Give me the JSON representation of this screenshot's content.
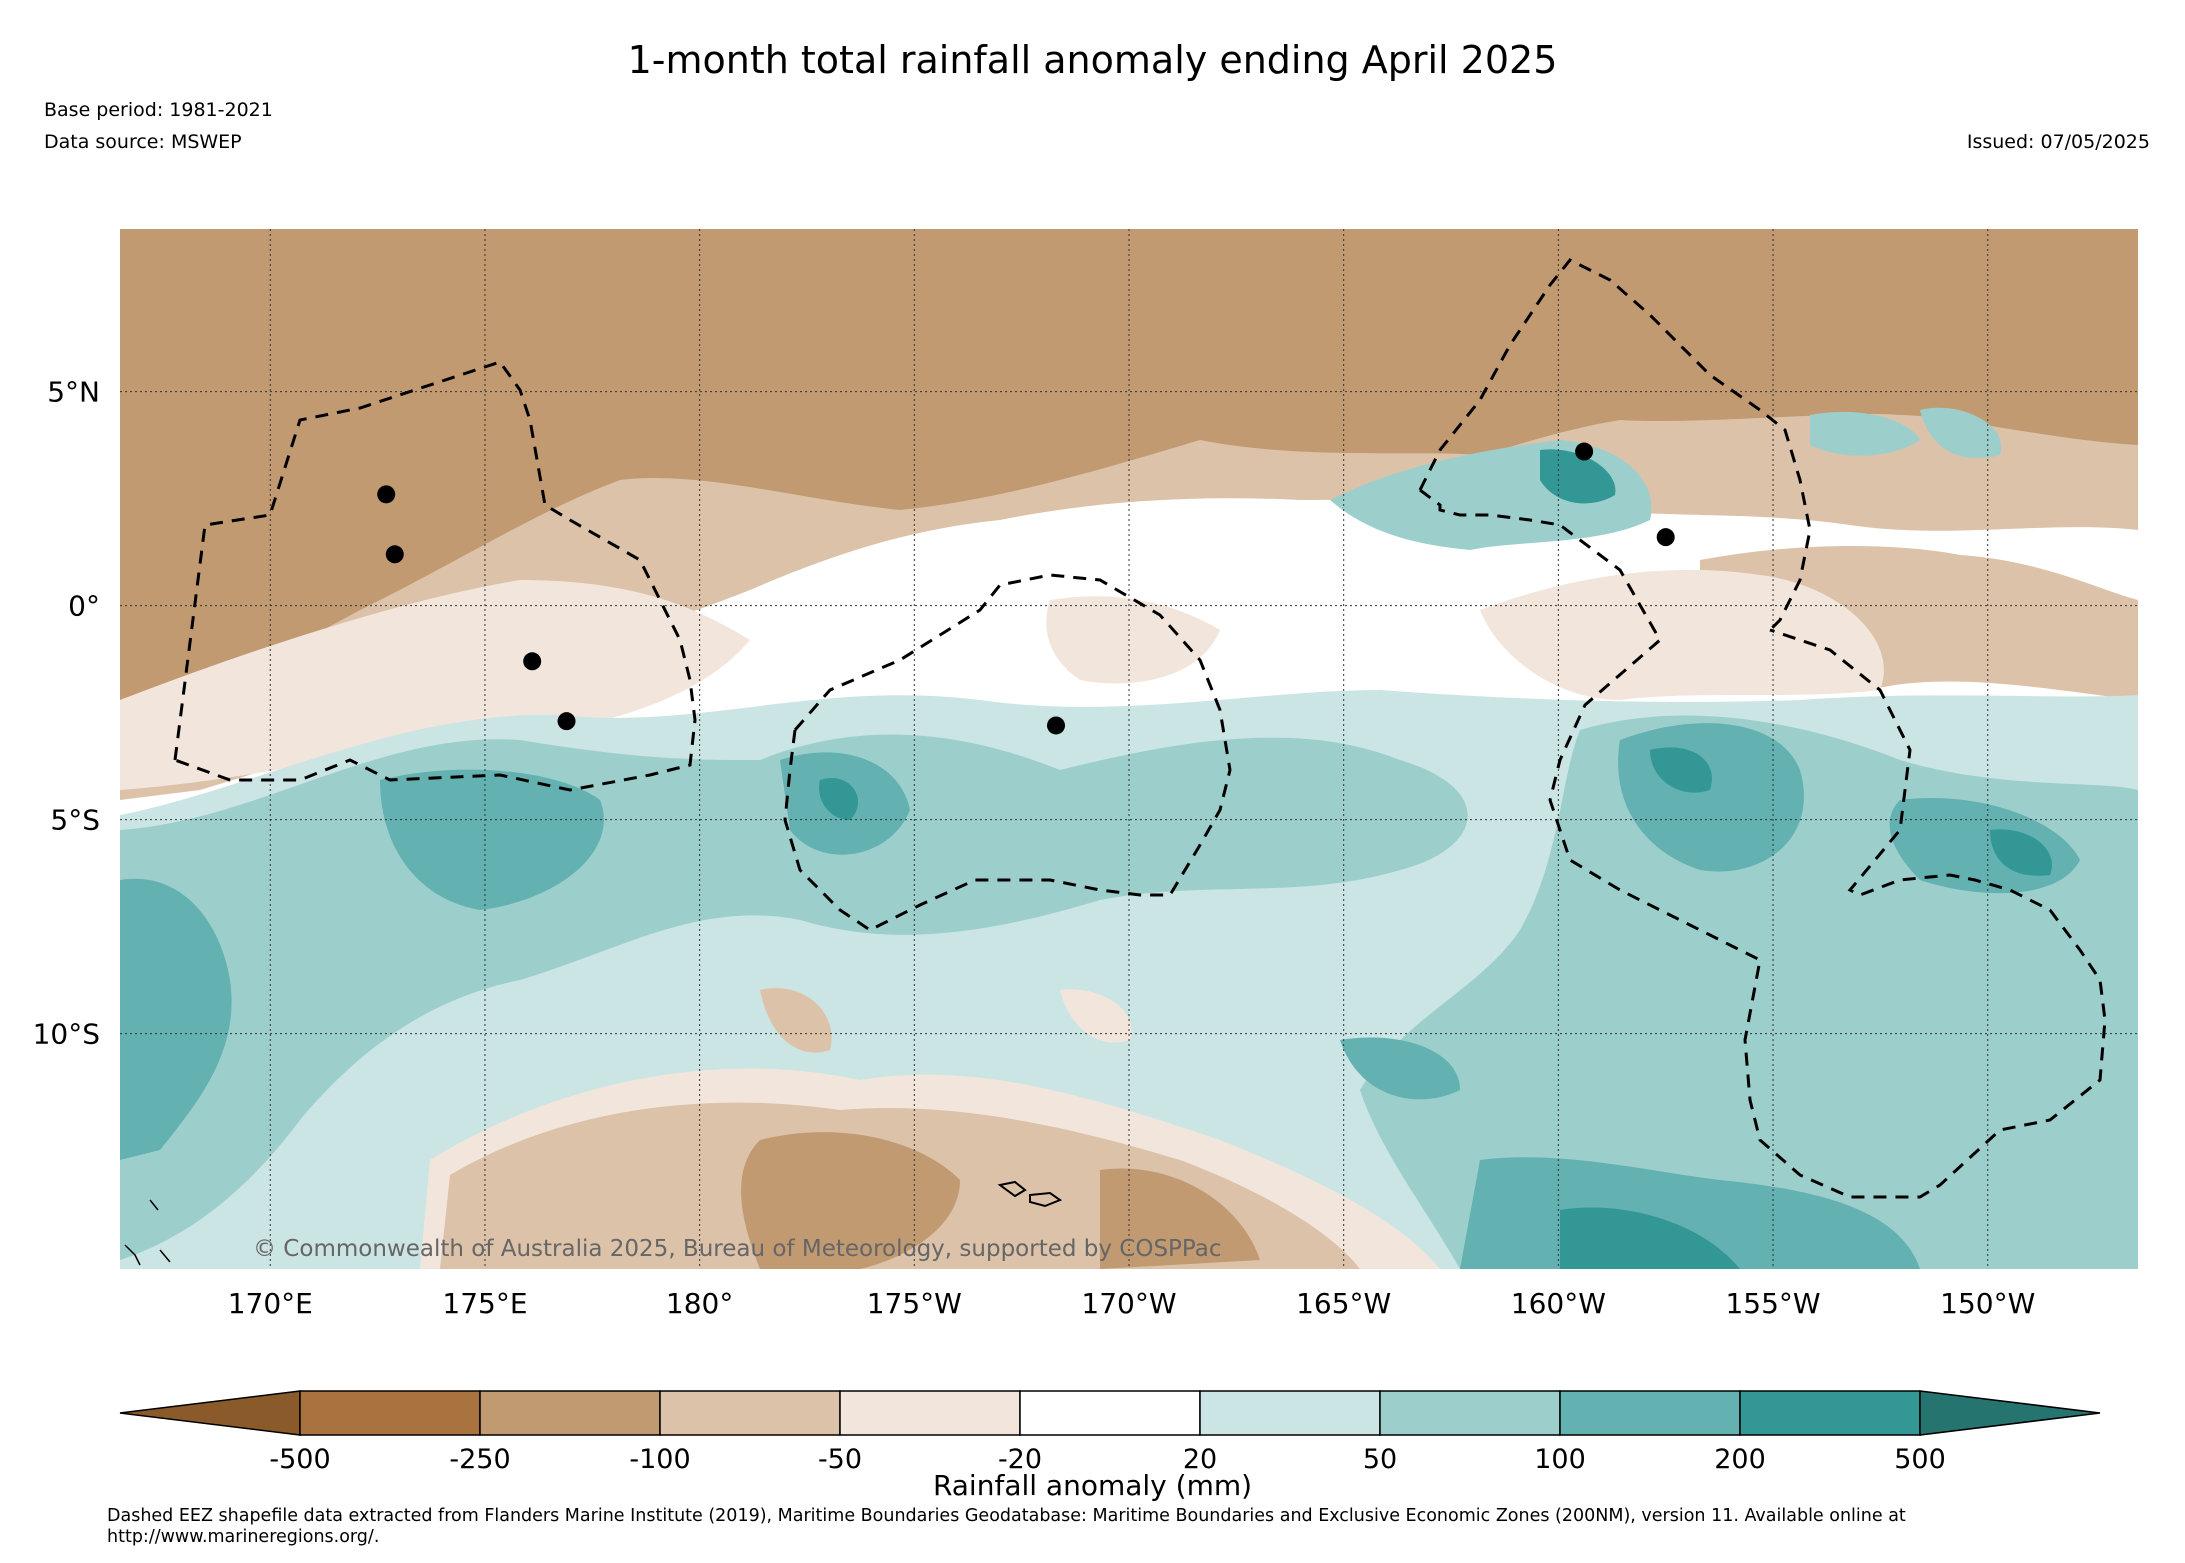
{
  "title": "1-month total rainfall anomaly ending April 2025",
  "base_period": "Base period: 1981-2021",
  "data_source": "Data source: MSWEP",
  "issued": "Issued: 07/05/2025",
  "copyright": "© Commonwealth of Australia 2025, Bureau of Meteorology, supported by COSPPac",
  "map": {
    "lon_range": [
      166.5,
      -146.5
    ],
    "lat_range": [
      -15.5,
      8.8
    ],
    "lon_ticks": [
      "170°E",
      "175°E",
      "180°",
      "175°W",
      "170°W",
      "165°W",
      "160°W",
      "155°W",
      "150°W"
    ],
    "lat_ticks": [
      "5°N",
      "0°",
      "5°S",
      "10°S"
    ],
    "stations": [
      {
        "lon": 172.7,
        "lat": 2.6
      },
      {
        "lon": 172.9,
        "lat": 1.2
      },
      {
        "lon": 176.1,
        "lat": -1.3
      },
      {
        "lon": 176.9,
        "lat": -2.7
      },
      {
        "lon": -171.7,
        "lat": -2.8
      },
      {
        "lon": -159.4,
        "lat": 3.6
      },
      {
        "lon": -157.5,
        "lat": 1.6
      }
    ]
  },
  "colorbar": {
    "title": "Rainfall anomaly (mm)",
    "ticks": [
      "-500",
      "-250",
      "-100",
      "-50",
      "-20",
      "20",
      "50",
      "100",
      "200",
      "500"
    ],
    "colors": [
      "#8b5a2b",
      "#a8733e",
      "#c19a72",
      "#dcc2a8",
      "#f2e6dc",
      "#ffffff",
      "#cbe5e4",
      "#9ccfcc",
      "#63b1b0",
      "#339895",
      "#25746f"
    ]
  },
  "footnote": "Dashed EEZ shapefile data extracted from Flanders Marine Institute (2019), Maritime Boundaries Geodatabase: Maritime Boundaries and Exclusive Economic Zones (200NM), version 11. Available online at http://www.marineregions.org/."
}
